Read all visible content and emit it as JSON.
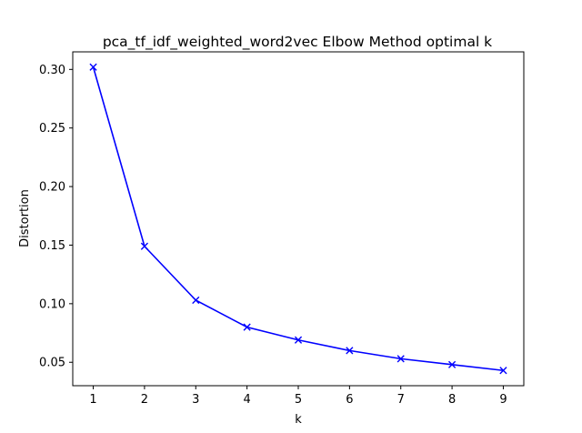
{
  "chart_data": {
    "type": "line",
    "title": "pca_tf_idf_weighted_word2vec Elbow Method optimal k",
    "xlabel": "k",
    "ylabel": "Distortion",
    "x": [
      1,
      2,
      3,
      4,
      5,
      6,
      7,
      8,
      9
    ],
    "series": [
      {
        "values": [
          0.302,
          0.149,
          0.103,
          0.08,
          0.069,
          0.06,
          0.053,
          0.048,
          0.043
        ],
        "color": "#0000ff",
        "marker": "x"
      }
    ],
    "xlim": [
      0.6,
      9.4
    ],
    "ylim": [
      0.03,
      0.315
    ],
    "xticks": [
      1,
      2,
      3,
      4,
      5,
      6,
      7,
      8,
      9
    ],
    "yticks": [
      0.05,
      0.1,
      0.15,
      0.2,
      0.25,
      0.3
    ],
    "ytick_labels": [
      "0.05",
      "0.10",
      "0.15",
      "0.20",
      "0.25",
      "0.30"
    ],
    "grid": false,
    "legend": "none"
  }
}
